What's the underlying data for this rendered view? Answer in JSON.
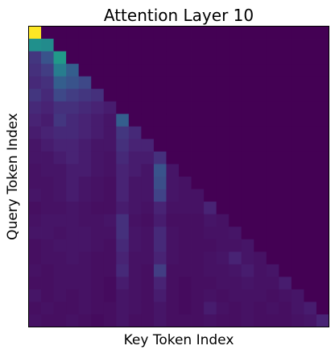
{
  "chart_data": {
    "type": "heatmap",
    "title": "Attention Layer 10",
    "xlabel": "Key Token Index",
    "ylabel": "Query Token Index",
    "colormap": "viridis",
    "value_range": [
      0,
      1
    ],
    "masked_value": 0,
    "grid": false,
    "ticks": false,
    "rows": 24,
    "cols": 24,
    "values": [
      [
        1.0,
        0,
        0,
        0,
        0,
        0,
        0,
        0,
        0,
        0,
        0,
        0,
        0,
        0,
        0,
        0,
        0,
        0,
        0,
        0,
        0,
        0,
        0,
        0
      ],
      [
        0.5,
        0.48,
        0,
        0,
        0,
        0,
        0,
        0,
        0,
        0,
        0,
        0,
        0,
        0,
        0,
        0,
        0,
        0,
        0,
        0,
        0,
        0,
        0,
        0
      ],
      [
        0.16,
        0.26,
        0.54,
        0,
        0,
        0,
        0,
        0,
        0,
        0,
        0,
        0,
        0,
        0,
        0,
        0,
        0,
        0,
        0,
        0,
        0,
        0,
        0,
        0
      ],
      [
        0.14,
        0.18,
        0.42,
        0.3,
        0,
        0,
        0,
        0,
        0,
        0,
        0,
        0,
        0,
        0,
        0,
        0,
        0,
        0,
        0,
        0,
        0,
        0,
        0,
        0
      ],
      [
        0.12,
        0.14,
        0.3,
        0.26,
        0.22,
        0,
        0,
        0,
        0,
        0,
        0,
        0,
        0,
        0,
        0,
        0,
        0,
        0,
        0,
        0,
        0,
        0,
        0,
        0
      ],
      [
        0.16,
        0.12,
        0.22,
        0.18,
        0.16,
        0.14,
        0,
        0,
        0,
        0,
        0,
        0,
        0,
        0,
        0,
        0,
        0,
        0,
        0,
        0,
        0,
        0,
        0,
        0
      ],
      [
        0.12,
        0.1,
        0.14,
        0.14,
        0.12,
        0.1,
        0.08,
        0,
        0,
        0,
        0,
        0,
        0,
        0,
        0,
        0,
        0,
        0,
        0,
        0,
        0,
        0,
        0,
        0
      ],
      [
        0.1,
        0.08,
        0.16,
        0.12,
        0.1,
        0.08,
        0.06,
        0.3,
        0,
        0,
        0,
        0,
        0,
        0,
        0,
        0,
        0,
        0,
        0,
        0,
        0,
        0,
        0,
        0
      ],
      [
        0.08,
        0.1,
        0.12,
        0.12,
        0.1,
        0.08,
        0.06,
        0.16,
        0.12,
        0,
        0,
        0,
        0,
        0,
        0,
        0,
        0,
        0,
        0,
        0,
        0,
        0,
        0,
        0
      ],
      [
        0.06,
        0.08,
        0.1,
        0.1,
        0.08,
        0.06,
        0.06,
        0.14,
        0.1,
        0.1,
        0,
        0,
        0,
        0,
        0,
        0,
        0,
        0,
        0,
        0,
        0,
        0,
        0,
        0
      ],
      [
        0.06,
        0.06,
        0.08,
        0.1,
        0.08,
        0.06,
        0.05,
        0.12,
        0.08,
        0.08,
        0.14,
        0,
        0,
        0,
        0,
        0,
        0,
        0,
        0,
        0,
        0,
        0,
        0,
        0
      ],
      [
        0.05,
        0.06,
        0.06,
        0.08,
        0.08,
        0.06,
        0.05,
        0.1,
        0.08,
        0.06,
        0.26,
        0.06,
        0,
        0,
        0,
        0,
        0,
        0,
        0,
        0,
        0,
        0,
        0,
        0
      ],
      [
        0.05,
        0.05,
        0.06,
        0.08,
        0.06,
        0.05,
        0.04,
        0.1,
        0.06,
        0.06,
        0.24,
        0.06,
        0.05,
        0,
        0,
        0,
        0,
        0,
        0,
        0,
        0,
        0,
        0,
        0
      ],
      [
        0.06,
        0.05,
        0.06,
        0.08,
        0.06,
        0.05,
        0.04,
        0.1,
        0.06,
        0.06,
        0.2,
        0.06,
        0.05,
        0.05,
        0,
        0,
        0,
        0,
        0,
        0,
        0,
        0,
        0,
        0
      ],
      [
        0.04,
        0.05,
        0.05,
        0.06,
        0.05,
        0.04,
        0.04,
        0.08,
        0.06,
        0.05,
        0.1,
        0.05,
        0.05,
        0.05,
        0.1,
        0,
        0,
        0,
        0,
        0,
        0,
        0,
        0,
        0
      ],
      [
        0.05,
        0.06,
        0.06,
        0.06,
        0.05,
        0.05,
        0.06,
        0.14,
        0.05,
        0.04,
        0.08,
        0.04,
        0.04,
        0.04,
        0.06,
        0.05,
        0,
        0,
        0,
        0,
        0,
        0,
        0,
        0
      ],
      [
        0.06,
        0.06,
        0.05,
        0.06,
        0.06,
        0.05,
        0.05,
        0.14,
        0.06,
        0.05,
        0.12,
        0.05,
        0.04,
        0.04,
        0.05,
        0.05,
        0.06,
        0,
        0,
        0,
        0,
        0,
        0,
        0
      ],
      [
        0.04,
        0.05,
        0.06,
        0.06,
        0.06,
        0.05,
        0.04,
        0.12,
        0.06,
        0.05,
        0.12,
        0.05,
        0.04,
        0.04,
        0.04,
        0.05,
        0.05,
        0.06,
        0,
        0,
        0,
        0,
        0,
        0
      ],
      [
        0.04,
        0.05,
        0.05,
        0.06,
        0.05,
        0.04,
        0.04,
        0.1,
        0.05,
        0.05,
        0.1,
        0.05,
        0.04,
        0.04,
        0.05,
        0.06,
        0.1,
        0.06,
        0.05,
        0,
        0,
        0,
        0,
        0
      ],
      [
        0.05,
        0.04,
        0.05,
        0.05,
        0.05,
        0.04,
        0.04,
        0.12,
        0.05,
        0.04,
        0.18,
        0.04,
        0.04,
        0.04,
        0.05,
        0.05,
        0.06,
        0.08,
        0.05,
        0.06,
        0,
        0,
        0,
        0
      ],
      [
        0.04,
        0.04,
        0.05,
        0.05,
        0.05,
        0.04,
        0.03,
        0.08,
        0.05,
        0.04,
        0.1,
        0.04,
        0.03,
        0.04,
        0.04,
        0.05,
        0.05,
        0.06,
        0.05,
        0.05,
        0.08,
        0,
        0,
        0
      ],
      [
        0.06,
        0.04,
        0.05,
        0.04,
        0.05,
        0.04,
        0.03,
        0.06,
        0.05,
        0.04,
        0.08,
        0.04,
        0.03,
        0.04,
        0.05,
        0.04,
        0.05,
        0.05,
        0.05,
        0.04,
        0.05,
        0.06,
        0,
        0
      ],
      [
        0.04,
        0.05,
        0.04,
        0.04,
        0.05,
        0.04,
        0.04,
        0.06,
        0.05,
        0.04,
        0.06,
        0.04,
        0.03,
        0.04,
        0.08,
        0.05,
        0.04,
        0.05,
        0.04,
        0.05,
        0.04,
        0.06,
        0.08,
        0
      ],
      [
        0.05,
        0.04,
        0.04,
        0.05,
        0.04,
        0.03,
        0.04,
        0.06,
        0.04,
        0.04,
        0.06,
        0.04,
        0.04,
        0.04,
        0.05,
        0.04,
        0.04,
        0.05,
        0.04,
        0.04,
        0.04,
        0.05,
        0.06,
        0.1
      ]
    ]
  }
}
